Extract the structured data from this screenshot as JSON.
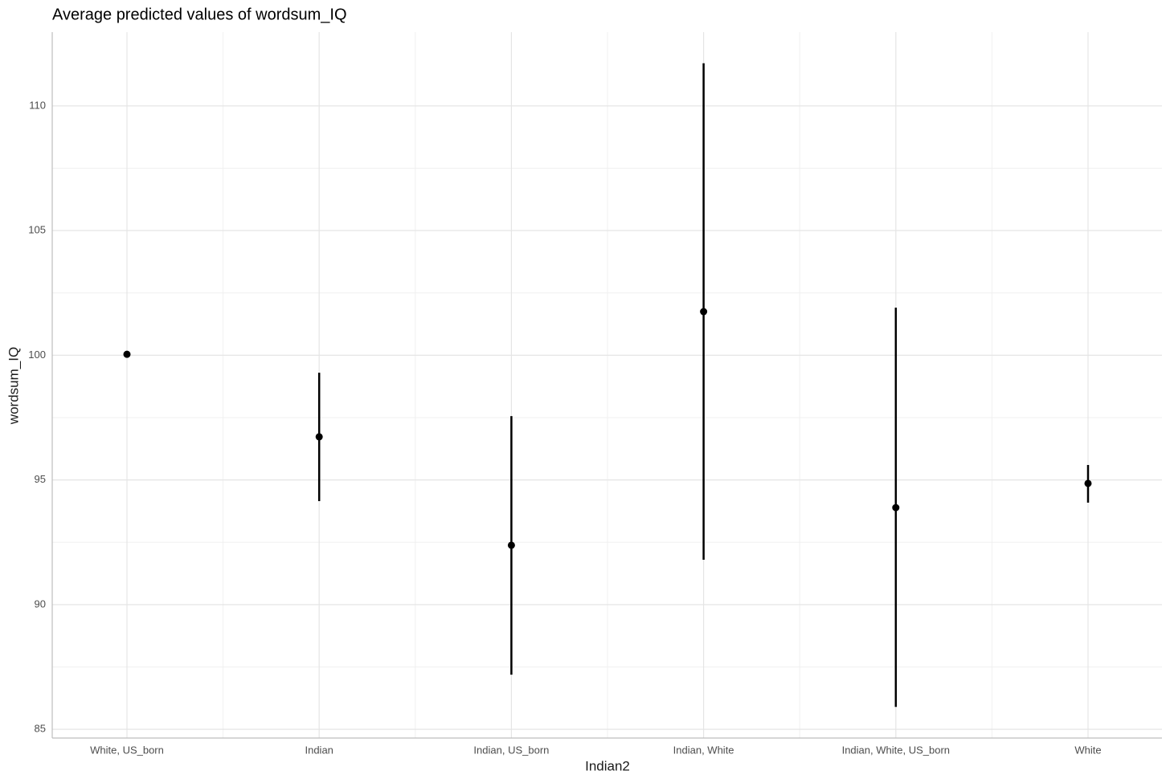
{
  "chart_data": {
    "type": "pointrange",
    "title": "Average predicted values of wordsum_IQ",
    "x_label": "Indian2",
    "y_label": "wordsum_IQ",
    "categories": [
      "White, US_born",
      "Indian",
      "Indian, US_born",
      "Indian, White",
      "Indian, White, US_born",
      "White"
    ],
    "values": [
      100.04,
      96.73,
      92.38,
      101.75,
      93.89,
      94.86
    ],
    "lower": [
      99.94,
      94.15,
      87.19,
      91.8,
      85.9,
      94.09
    ],
    "upper": [
      100.14,
      99.3,
      97.56,
      111.71,
      101.91,
      95.6
    ],
    "color": "#000000",
    "ylim": [
      84.65,
      112.96
    ],
    "yticks": [
      85,
      90,
      95,
      100,
      105,
      110
    ],
    "grid": true
  }
}
